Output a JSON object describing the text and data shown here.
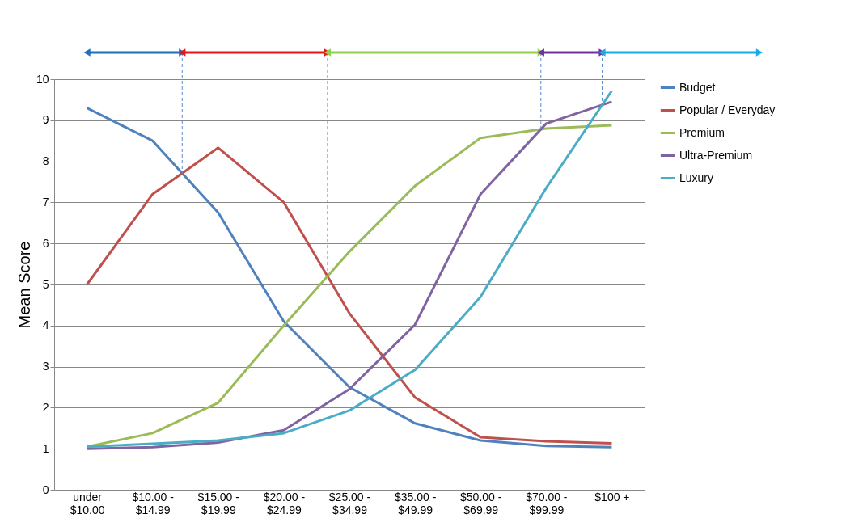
{
  "chart_data": {
    "type": "line",
    "ylabel": "Mean Score",
    "categories": [
      "under $10.00",
      "$10.00 - $14.99",
      "$15.00 - $19.99",
      "$20.00 - $24.99",
      "$25.00 - $34.99",
      "$35.00 - $49.99",
      "$50.00 - $69.99",
      "$70.00 - $99.99",
      "$100 +"
    ],
    "series": [
      {
        "name": "Budget",
        "color": "#4f81bd",
        "values": [
          9.3,
          8.5,
          6.75,
          4.1,
          2.5,
          1.62,
          1.2,
          1.07,
          1.04
        ]
      },
      {
        "name": "Popular / Everyday",
        "color": "#c0504d",
        "values": [
          5.0,
          7.2,
          8.33,
          7.0,
          4.3,
          2.25,
          1.28,
          1.18,
          1.13
        ]
      },
      {
        "name": "Premium",
        "color": "#9bbb59",
        "values": [
          1.05,
          1.38,
          2.12,
          4.0,
          5.8,
          7.4,
          8.57,
          8.8,
          8.88
        ]
      },
      {
        "name": "Ultra-Premium",
        "color": "#8064a2",
        "values": [
          1.0,
          1.04,
          1.15,
          1.45,
          2.45,
          4.02,
          7.2,
          8.92,
          9.45
        ]
      },
      {
        "name": "Luxury",
        "color": "#4bacc6",
        "values": [
          1.05,
          1.12,
          1.2,
          1.38,
          1.93,
          2.92,
          4.7,
          7.35,
          9.72
        ]
      }
    ],
    "ylim": [
      0,
      10
    ],
    "yticks": [
      0,
      1,
      2,
      3,
      4,
      5,
      6,
      7,
      8,
      9,
      10
    ],
    "grid": "y",
    "legend": "right",
    "marker": "none",
    "line_style": "solid"
  }
}
